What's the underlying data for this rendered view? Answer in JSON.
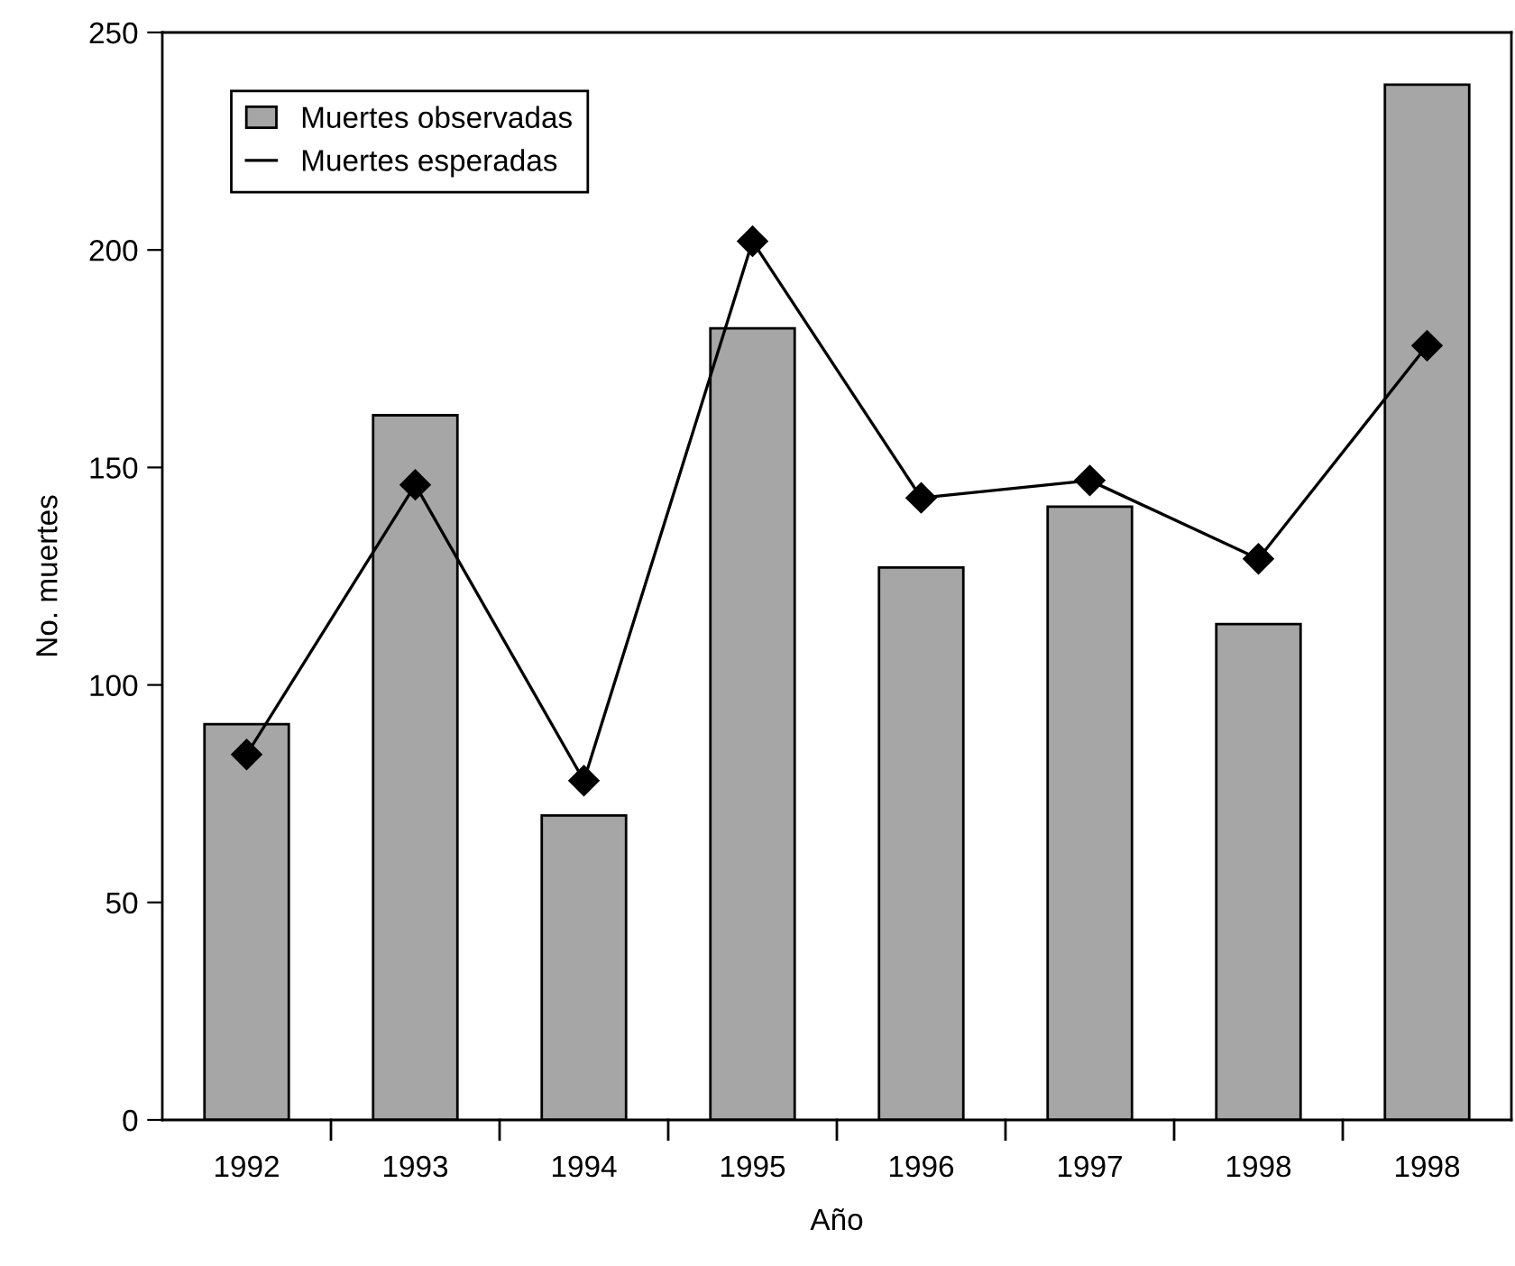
{
  "chart_data": {
    "type": "bar",
    "xlabel": "Año",
    "ylabel": "No. muertes",
    "categories": [
      "1992",
      "1993",
      "1994",
      "1995",
      "1996",
      "1997",
      "1998",
      "1998"
    ],
    "series": [
      {
        "name": "Muertes observadas",
        "color": "#a6a6a6",
        "values": [
          91,
          162,
          70,
          182,
          127,
          141,
          114,
          238
        ]
      },
      {
        "name": "Muertes esperadas",
        "type": "line",
        "color": "#000000",
        "marker": "diamond",
        "line_style": "solid",
        "values": [
          84,
          146,
          78,
          202,
          143,
          147,
          129,
          178
        ]
      }
    ],
    "ylim": [
      0,
      250
    ],
    "yticks": [
      0,
      50,
      100,
      150,
      200,
      250
    ],
    "grid": false,
    "legend": "top left"
  }
}
